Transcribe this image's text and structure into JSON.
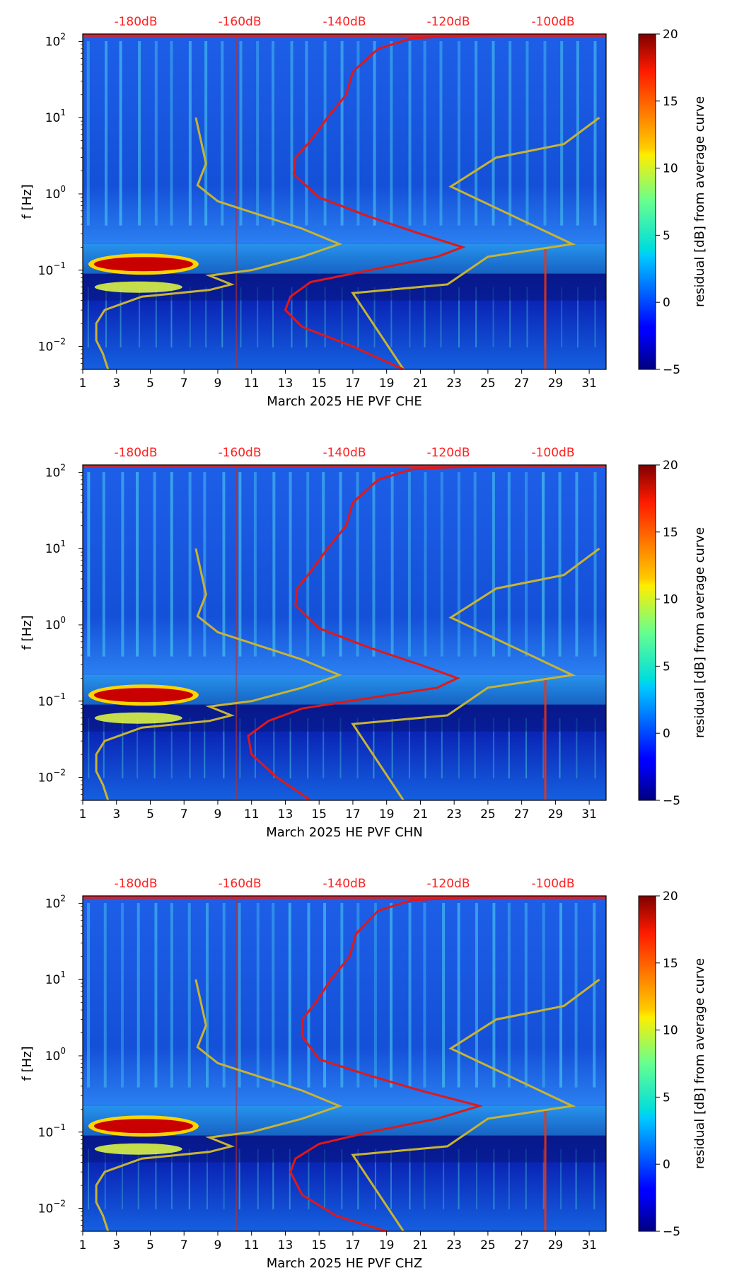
{
  "chart_data": [
    {
      "type": "heatmap",
      "channel": "CHE",
      "xlabel": "March 2025 HE PVF  CHE",
      "ylabel": "f [Hz]",
      "xlim": [
        1,
        32
      ],
      "ylim_log": [
        0.005,
        125
      ],
      "xticks": [
        "1",
        "3",
        "5",
        "7",
        "9",
        "11",
        "13",
        "15",
        "17",
        "19",
        "21",
        "23",
        "25",
        "27",
        "29",
        "31"
      ],
      "yticks": [
        {
          "exp": -2,
          "label": "10"
        },
        {
          "exp": -1,
          "label": "10"
        },
        {
          "exp": 0,
          "label": "10"
        },
        {
          "exp": 1,
          "label": "10"
        },
        {
          "exp": 2,
          "label": "10"
        }
      ],
      "top_axis_labels": [
        "-180dB",
        "-160dB",
        "-140dB",
        "-120dB",
        "-100dB"
      ],
      "colorbar": {
        "label": "residual [dB] from average curve",
        "min": -5,
        "max": 20,
        "ticks": [
          "20",
          "15",
          "10",
          "5",
          "0",
          "−5"
        ]
      },
      "noise_models": {
        "color_line": "#c8b432",
        "low_noise_model": [
          [
            2.5,
            0.005
          ],
          [
            2.2,
            0.008
          ],
          [
            1.8,
            0.012
          ],
          [
            1.8,
            0.02
          ],
          [
            2.3,
            0.03
          ],
          [
            4.5,
            0.045
          ],
          [
            8.5,
            0.055
          ],
          [
            9.8,
            0.065
          ],
          [
            8.5,
            0.085
          ],
          [
            11,
            0.1
          ],
          [
            14,
            0.15
          ],
          [
            16.2,
            0.22
          ],
          [
            14,
            0.35
          ],
          [
            9,
            0.8
          ],
          [
            7.8,
            1.3
          ],
          [
            8.3,
            2.5
          ],
          [
            8,
            5
          ],
          [
            7.7,
            10
          ]
        ],
        "high_noise_model": [
          [
            20,
            0.005
          ],
          [
            17,
            0.05
          ],
          [
            22.6,
            0.065
          ],
          [
            25,
            0.15
          ],
          [
            30,
            0.22
          ],
          [
            22.8,
            1.25
          ],
          [
            25.5,
            3
          ],
          [
            29.5,
            4.5
          ],
          [
            31.6,
            10
          ]
        ]
      },
      "mean_curve": {
        "color": "#e01818",
        "points": [
          [
            20,
            0.005
          ],
          [
            17,
            0.01
          ],
          [
            14,
            0.018
          ],
          [
            13,
            0.03
          ],
          [
            13.3,
            0.045
          ],
          [
            14.5,
            0.07
          ],
          [
            18,
            0.1
          ],
          [
            22,
            0.15
          ],
          [
            23.5,
            0.2
          ],
          [
            21,
            0.3
          ],
          [
            18,
            0.5
          ],
          [
            15,
            0.9
          ],
          [
            13.5,
            1.8
          ],
          [
            13.6,
            3
          ],
          [
            14.5,
            5
          ],
          [
            15.5,
            10
          ],
          [
            16.6,
            20
          ],
          [
            17,
            40
          ],
          [
            18.5,
            80
          ],
          [
            20.5,
            110
          ],
          [
            26,
            125
          ],
          [
            31.5,
            125
          ]
        ]
      }
    },
    {
      "type": "heatmap",
      "channel": "CHN",
      "xlabel": "March 2025 HE PVF  CHN",
      "ylabel": "f [Hz]",
      "xlim": [
        1,
        32
      ],
      "ylim_log": [
        0.005,
        125
      ],
      "xticks": [
        "1",
        "3",
        "5",
        "7",
        "9",
        "11",
        "13",
        "15",
        "17",
        "19",
        "21",
        "23",
        "25",
        "27",
        "29",
        "31"
      ],
      "yticks": [
        {
          "exp": -2,
          "label": "10"
        },
        {
          "exp": -1,
          "label": "10"
        },
        {
          "exp": 0,
          "label": "10"
        },
        {
          "exp": 1,
          "label": "10"
        },
        {
          "exp": 2,
          "label": "10"
        }
      ],
      "top_axis_labels": [
        "-180dB",
        "-160dB",
        "-140dB",
        "-120dB",
        "-100dB"
      ],
      "colorbar": {
        "label": "residual [dB] from average curve",
        "min": -5,
        "max": 20,
        "ticks": [
          "20",
          "15",
          "10",
          "5",
          "0",
          "−5"
        ]
      },
      "noise_models": {
        "color_line": "#c8b432",
        "low_noise_model": [
          [
            2.5,
            0.005
          ],
          [
            2.2,
            0.008
          ],
          [
            1.8,
            0.012
          ],
          [
            1.8,
            0.02
          ],
          [
            2.3,
            0.03
          ],
          [
            4.5,
            0.045
          ],
          [
            8.5,
            0.055
          ],
          [
            9.8,
            0.065
          ],
          [
            8.5,
            0.085
          ],
          [
            11,
            0.1
          ],
          [
            14,
            0.15
          ],
          [
            16.2,
            0.22
          ],
          [
            14,
            0.35
          ],
          [
            9,
            0.8
          ],
          [
            7.8,
            1.3
          ],
          [
            8.3,
            2.5
          ],
          [
            8,
            5
          ],
          [
            7.7,
            10
          ]
        ],
        "high_noise_model": [
          [
            20,
            0.005
          ],
          [
            17,
            0.05
          ],
          [
            22.6,
            0.065
          ],
          [
            25,
            0.15
          ],
          [
            30,
            0.22
          ],
          [
            22.8,
            1.25
          ],
          [
            25.5,
            3
          ],
          [
            29.5,
            4.5
          ],
          [
            31.6,
            10
          ]
        ]
      },
      "mean_curve": {
        "color": "#e01818",
        "points": [
          [
            14.5,
            0.005
          ],
          [
            12.5,
            0.01
          ],
          [
            11,
            0.02
          ],
          [
            10.8,
            0.035
          ],
          [
            12,
            0.055
          ],
          [
            14,
            0.08
          ],
          [
            18,
            0.11
          ],
          [
            22,
            0.15
          ],
          [
            23.2,
            0.2
          ],
          [
            21,
            0.3
          ],
          [
            18,
            0.5
          ],
          [
            15,
            0.9
          ],
          [
            13.6,
            1.8
          ],
          [
            13.7,
            3
          ],
          [
            14.5,
            5
          ],
          [
            15.5,
            10
          ],
          [
            16.6,
            20
          ],
          [
            17,
            40
          ],
          [
            18.5,
            80
          ],
          [
            20.5,
            110
          ],
          [
            26,
            125
          ],
          [
            31.5,
            125
          ]
        ]
      }
    },
    {
      "type": "heatmap",
      "channel": "CHZ",
      "xlabel": "March 2025 HE PVF  CHZ",
      "ylabel": "f [Hz]",
      "xlim": [
        1,
        32
      ],
      "ylim_log": [
        0.005,
        125
      ],
      "xticks": [
        "1",
        "3",
        "5",
        "7",
        "9",
        "11",
        "13",
        "15",
        "17",
        "19",
        "21",
        "23",
        "25",
        "27",
        "29",
        "31"
      ],
      "yticks": [
        {
          "exp": -2,
          "label": "10"
        },
        {
          "exp": -1,
          "label": "10"
        },
        {
          "exp": 0,
          "label": "10"
        },
        {
          "exp": 1,
          "label": "10"
        },
        {
          "exp": 2,
          "label": "10"
        }
      ],
      "top_axis_labels": [
        "-180dB",
        "-160dB",
        "-140dB",
        "-120dB",
        "-100dB"
      ],
      "colorbar": {
        "label": "residual [dB] from average curve",
        "min": -5,
        "max": 20,
        "ticks": [
          "20",
          "15",
          "10",
          "5",
          "0",
          "−5"
        ]
      },
      "noise_models": {
        "color_line": "#c8b432",
        "low_noise_model": [
          [
            2.5,
            0.005
          ],
          [
            2.2,
            0.008
          ],
          [
            1.8,
            0.012
          ],
          [
            1.8,
            0.02
          ],
          [
            2.3,
            0.03
          ],
          [
            4.5,
            0.045
          ],
          [
            8.5,
            0.055
          ],
          [
            9.8,
            0.065
          ],
          [
            8.5,
            0.085
          ],
          [
            11,
            0.1
          ],
          [
            14,
            0.15
          ],
          [
            16.2,
            0.22
          ],
          [
            14,
            0.35
          ],
          [
            9,
            0.8
          ],
          [
            7.8,
            1.3
          ],
          [
            8.3,
            2.5
          ],
          [
            8,
            5
          ],
          [
            7.7,
            10
          ]
        ],
        "high_noise_model": [
          [
            20,
            0.005
          ],
          [
            17,
            0.05
          ],
          [
            22.6,
            0.065
          ],
          [
            25,
            0.15
          ],
          [
            30,
            0.22
          ],
          [
            22.8,
            1.25
          ],
          [
            25.5,
            3
          ],
          [
            29.5,
            4.5
          ],
          [
            31.6,
            10
          ]
        ]
      },
      "mean_curve": {
        "color": "#e01818",
        "points": [
          [
            19,
            0.005
          ],
          [
            16,
            0.008
          ],
          [
            14,
            0.015
          ],
          [
            13.3,
            0.03
          ],
          [
            13.6,
            0.045
          ],
          [
            15,
            0.07
          ],
          [
            18,
            0.1
          ],
          [
            22,
            0.15
          ],
          [
            24.5,
            0.22
          ],
          [
            21,
            0.35
          ],
          [
            18,
            0.55
          ],
          [
            15,
            0.9
          ],
          [
            14,
            1.8
          ],
          [
            14,
            3
          ],
          [
            14.8,
            5
          ],
          [
            15.7,
            10
          ],
          [
            16.8,
            20
          ],
          [
            17.2,
            40
          ],
          [
            18.5,
            80
          ],
          [
            20.5,
            110
          ],
          [
            26,
            125
          ],
          [
            31.5,
            125
          ]
        ]
      }
    }
  ]
}
